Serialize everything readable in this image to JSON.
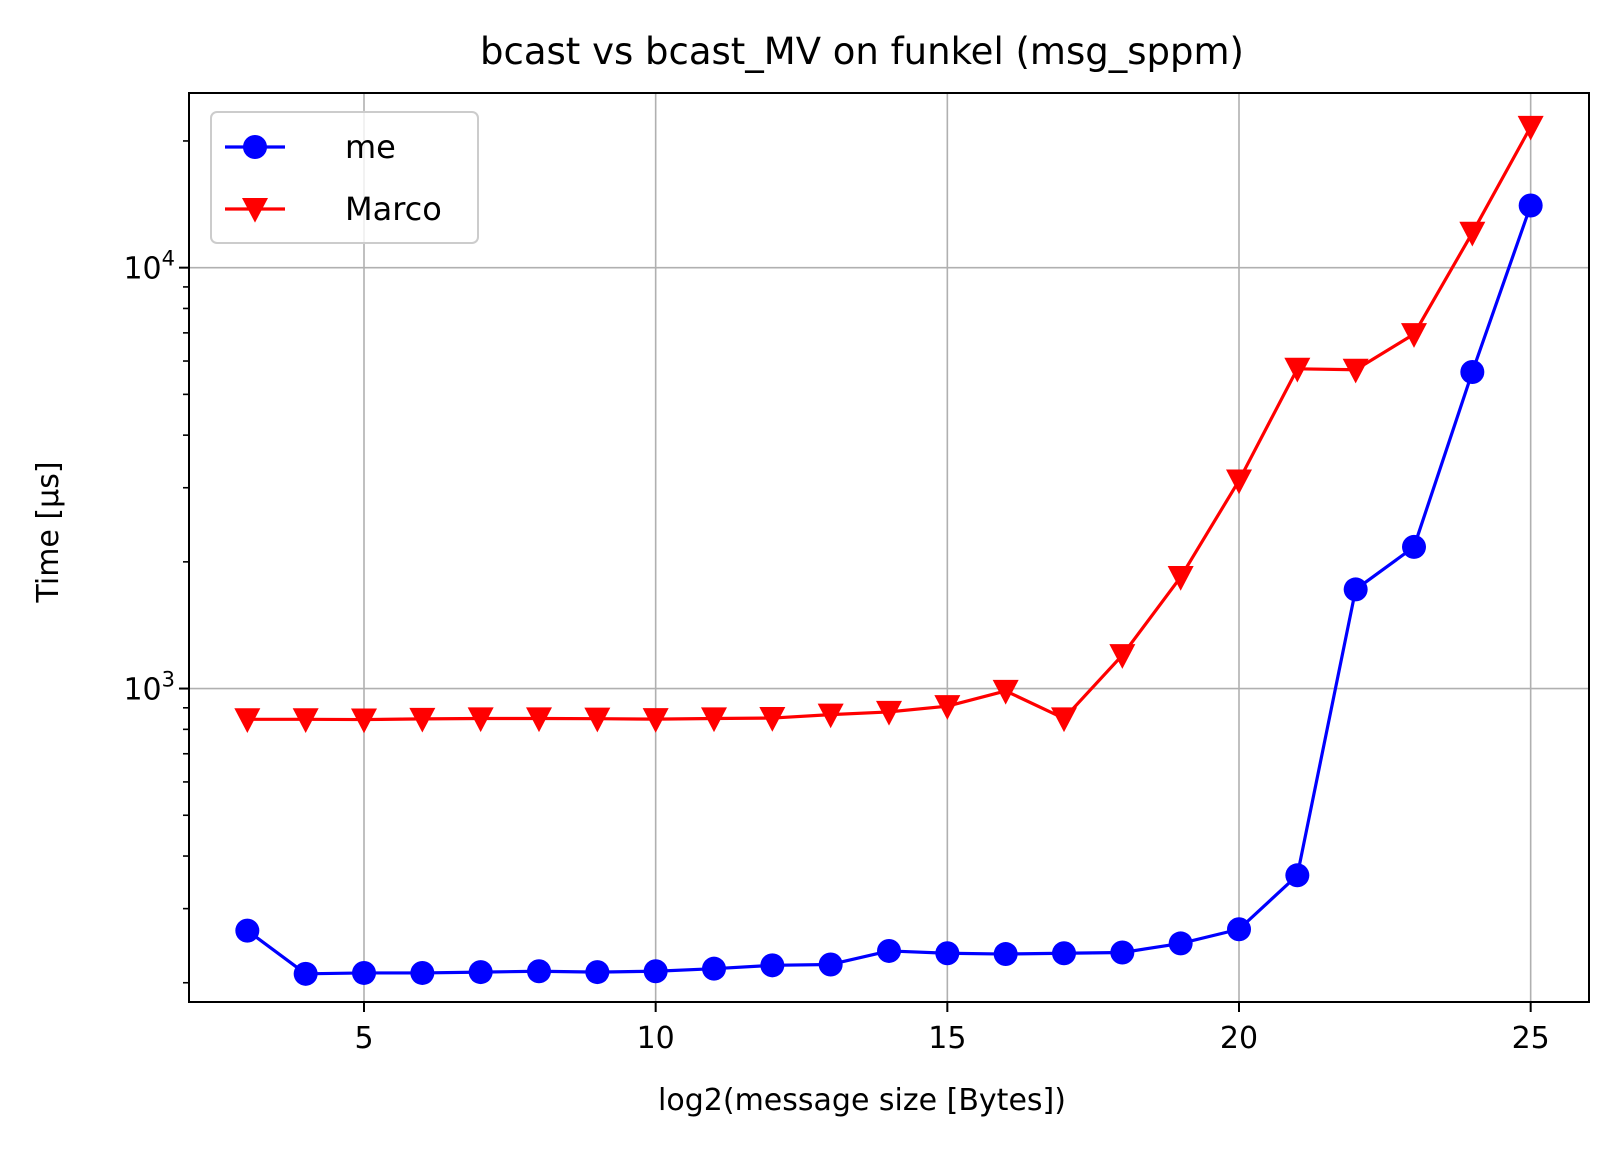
{
  "chart_data": {
    "type": "line",
    "title": "bcast vs bcast_MV on funkel (msg_sppm)",
    "xlabel": "log2(message size [Bytes])",
    "ylabel": "Time [µs]",
    "xlim": [
      2,
      26
    ],
    "ylim": [
      180,
      26000
    ],
    "yscale": "log",
    "grid": true,
    "legend_position": "top-left",
    "x_ticks": [
      5,
      10,
      15,
      20,
      25
    ],
    "y_ticks": [
      {
        "value": 1000,
        "base": "10",
        "exp": "3"
      },
      {
        "value": 10000,
        "base": "10",
        "exp": "4"
      }
    ],
    "x": [
      3,
      4,
      5,
      6,
      7,
      8,
      9,
      10,
      11,
      12,
      13,
      14,
      15,
      16,
      17,
      18,
      19,
      20,
      21,
      22,
      23,
      24,
      25
    ],
    "series": [
      {
        "name": "me",
        "color": "#0000ff",
        "marker": "circle",
        "values": [
          266,
          210,
          211,
          211,
          212,
          213,
          212,
          213,
          216,
          220,
          221,
          238,
          235,
          234,
          235,
          236,
          248,
          268,
          360,
          1720,
          2170,
          5650,
          14050
        ]
      },
      {
        "name": "Marco",
        "color": "#ff0000",
        "marker": "triangle-down",
        "values": [
          845,
          845,
          844,
          847,
          849,
          849,
          848,
          846,
          849,
          851,
          867,
          880,
          908,
          987,
          849,
          1200,
          1840,
          3120,
          5750,
          5720,
          6950,
          12100,
          21600
        ]
      }
    ]
  }
}
